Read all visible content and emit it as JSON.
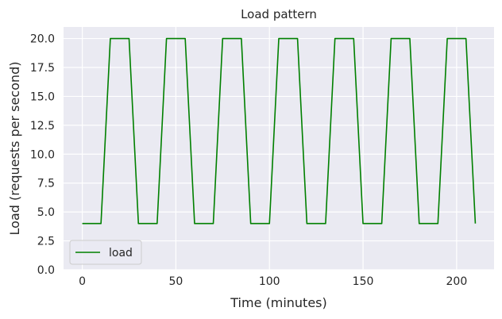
{
  "chart_data": {
    "type": "line",
    "title": "Load pattern",
    "xlabel": "Time (minutes)",
    "ylabel": "Load (requests per second)",
    "xlim": [
      -10,
      220
    ],
    "ylim": [
      0,
      21
    ],
    "xticks": [
      0,
      50,
      100,
      150,
      200
    ],
    "xtick_labels": [
      "0",
      "50",
      "100",
      "150",
      "200"
    ],
    "yticks": [
      0,
      2.5,
      5,
      7.5,
      10,
      12.5,
      15,
      17.5,
      20
    ],
    "ytick_labels": [
      "0.0",
      "2.5",
      "5.0",
      "7.5",
      "10.0",
      "12.5",
      "15.0",
      "17.5",
      "20.0"
    ],
    "grid": true,
    "legend_position": "lower-left",
    "series": [
      {
        "name": "load",
        "color": "#008000",
        "x": [
          0,
          10,
          15,
          25,
          30,
          40,
          45,
          55,
          60,
          70,
          75,
          85,
          90,
          100,
          105,
          115,
          120,
          130,
          135,
          145,
          150,
          160,
          165,
          175,
          180,
          190,
          195,
          205,
          210
        ],
        "y": [
          4,
          4,
          20,
          20,
          4,
          4,
          20,
          20,
          4,
          4,
          20,
          20,
          4,
          4,
          20,
          20,
          4,
          4,
          20,
          20,
          4,
          4,
          20,
          20,
          4,
          4,
          20,
          20,
          4
        ]
      }
    ]
  }
}
